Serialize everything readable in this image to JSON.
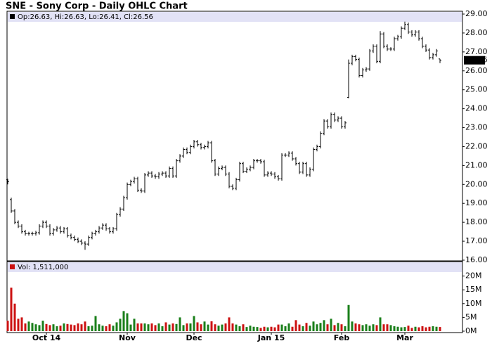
{
  "chart_data": [
    {
      "type": "ohlc",
      "title": "SNE - Sony Corp - Daily OHLC Chart",
      "legend": "Op:26.63, Hi:26.63, Lo:26.41, Cl:26.56",
      "legend_color": "#000000",
      "color": "#000000",
      "categories": [
        null,
        null,
        null,
        null,
        null,
        null,
        null,
        null,
        null,
        null,
        null,
        "Oct 14",
        null,
        null,
        null,
        null,
        null,
        null,
        null,
        null,
        null,
        null,
        null,
        null,
        null,
        null,
        null,
        null,
        null,
        null,
        null,
        null,
        null,
        null,
        "Nov",
        null,
        null,
        null,
        null,
        null,
        null,
        null,
        null,
        null,
        null,
        null,
        null,
        null,
        null,
        null,
        null,
        null,
        null,
        "Dec",
        null,
        null,
        null,
        null,
        null,
        null,
        null,
        null,
        null,
        null,
        null,
        null,
        null,
        null,
        null,
        null,
        null,
        null,
        null,
        null,
        null,
        "Jan 15",
        null,
        null,
        null,
        null,
        null,
        null,
        null,
        null,
        null,
        null,
        null,
        null,
        null,
        null,
        null,
        null,
        null,
        null,
        null,
        "Feb",
        null,
        null,
        null,
        null,
        null,
        null,
        null,
        null,
        null,
        null,
        null,
        null,
        null,
        null,
        null,
        null,
        null,
        "Mar",
        null,
        null,
        null,
        null,
        null,
        null,
        null,
        null,
        null,
        null
      ],
      "open": [
        20.25,
        19.2,
        18.6,
        18.0,
        17.8,
        17.5,
        17.4,
        17.4,
        17.4,
        17.45,
        17.8,
        18.0,
        17.8,
        17.4,
        17.6,
        17.7,
        17.5,
        17.65,
        17.3,
        17.2,
        17.1,
        17.0,
        16.9,
        16.85,
        17.2,
        17.4,
        17.5,
        17.7,
        17.85,
        17.65,
        17.5,
        17.65,
        18.4,
        18.7,
        19.3,
        20.0,
        20.15,
        20.3,
        19.7,
        19.65,
        20.5,
        20.6,
        20.45,
        20.4,
        20.55,
        20.6,
        20.45,
        20.85,
        20.45,
        21.25,
        21.5,
        21.85,
        21.7,
        22.0,
        22.25,
        22.1,
        21.95,
        22.0,
        22.2,
        21.25,
        20.55,
        20.85,
        20.9,
        20.55,
        19.9,
        19.8,
        20.25,
        21.1,
        20.7,
        20.8,
        20.9,
        21.25,
        21.25,
        21.2,
        20.5,
        20.6,
        20.55,
        20.4,
        20.3,
        21.55,
        21.55,
        21.65,
        21.35,
        21.1,
        20.65,
        21.1,
        20.5,
        20.8,
        21.85,
        22.0,
        22.7,
        23.35,
        23.05,
        23.7,
        23.4,
        23.5,
        23.05,
        24.6,
        26.4,
        26.75,
        26.6,
        25.75,
        26.05,
        26.1,
        27.05,
        27.3,
        26.5,
        27.95,
        27.3,
        27.15,
        27.15,
        27.7,
        27.8,
        28.25,
        28.45,
        28.05,
        27.9,
        28.05,
        27.7,
        27.3,
        27.1,
        26.7,
        26.85,
        26.63
      ],
      "high": [
        20.3,
        19.3,
        18.7,
        18.1,
        17.9,
        17.6,
        17.5,
        17.5,
        17.55,
        17.9,
        18.1,
        18.1,
        17.9,
        17.7,
        17.8,
        17.8,
        17.75,
        17.75,
        17.4,
        17.3,
        17.2,
        17.1,
        17.0,
        17.3,
        17.5,
        17.6,
        17.8,
        17.95,
        17.95,
        17.75,
        17.75,
        18.5,
        18.8,
        19.4,
        20.1,
        20.25,
        20.4,
        20.4,
        19.8,
        20.6,
        20.7,
        20.7,
        20.55,
        20.65,
        20.7,
        20.7,
        20.95,
        20.95,
        21.35,
        21.6,
        21.95,
        21.95,
        22.1,
        22.35,
        22.35,
        22.2,
        22.1,
        22.3,
        22.3,
        21.35,
        20.95,
        21.0,
        21.0,
        20.65,
        20.0,
        20.35,
        21.2,
        21.2,
        20.9,
        21.0,
        21.35,
        21.35,
        21.35,
        21.3,
        20.7,
        20.7,
        20.65,
        20.5,
        21.65,
        21.65,
        21.75,
        21.75,
        21.45,
        21.2,
        21.2,
        21.2,
        20.9,
        21.95,
        22.1,
        22.8,
        23.45,
        23.45,
        23.8,
        23.8,
        23.6,
        23.6,
        23.35,
        26.6,
        26.85,
        26.85,
        26.7,
        26.15,
        26.2,
        27.15,
        27.4,
        27.4,
        28.1,
        28.05,
        27.4,
        27.25,
        27.8,
        27.9,
        28.35,
        28.6,
        28.55,
        28.15,
        28.15,
        28.15,
        27.8,
        27.4,
        27.2,
        26.95,
        27.15,
        26.63
      ],
      "low": [
        20.0,
        18.5,
        17.9,
        17.7,
        17.4,
        17.3,
        17.3,
        17.3,
        17.3,
        17.35,
        17.7,
        17.7,
        17.3,
        17.3,
        17.5,
        17.4,
        17.4,
        17.2,
        17.1,
        17.0,
        16.9,
        16.8,
        16.55,
        16.75,
        17.1,
        17.3,
        17.4,
        17.6,
        17.55,
        17.4,
        17.4,
        17.55,
        18.3,
        18.6,
        19.2,
        19.9,
        20.05,
        19.6,
        19.55,
        19.55,
        20.4,
        20.35,
        20.3,
        20.3,
        20.45,
        20.35,
        20.35,
        20.35,
        20.35,
        21.15,
        21.4,
        21.6,
        21.6,
        21.9,
        22.0,
        21.85,
        21.85,
        21.9,
        21.15,
        20.45,
        20.45,
        20.75,
        20.45,
        19.8,
        19.7,
        19.7,
        20.15,
        20.6,
        20.6,
        20.7,
        20.8,
        21.15,
        21.1,
        20.4,
        20.4,
        20.45,
        20.3,
        20.2,
        20.2,
        21.45,
        21.45,
        21.25,
        21.0,
        20.55,
        20.55,
        20.4,
        20.4,
        20.7,
        21.75,
        21.9,
        22.6,
        22.95,
        22.95,
        23.3,
        23.3,
        22.95,
        22.95,
        24.55,
        26.3,
        26.5,
        25.65,
        25.65,
        25.95,
        26.0,
        26.95,
        26.4,
        26.4,
        27.2,
        27.05,
        27.05,
        27.05,
        27.6,
        27.7,
        28.15,
        27.95,
        27.8,
        27.8,
        27.6,
        27.2,
        27.0,
        26.6,
        26.6,
        26.75,
        26.41
      ],
      "close": [
        20.15,
        18.6,
        18.0,
        17.8,
        17.5,
        17.4,
        17.4,
        17.4,
        17.45,
        17.8,
        18.0,
        17.8,
        17.4,
        17.6,
        17.7,
        17.5,
        17.65,
        17.3,
        17.2,
        17.1,
        17.0,
        16.9,
        16.85,
        17.2,
        17.4,
        17.5,
        17.7,
        17.85,
        17.65,
        17.5,
        17.65,
        18.4,
        18.7,
        19.3,
        20.0,
        20.15,
        20.3,
        19.7,
        19.65,
        20.5,
        20.6,
        20.45,
        20.4,
        20.55,
        20.6,
        20.45,
        20.85,
        20.45,
        21.25,
        21.5,
        21.85,
        21.7,
        22.0,
        22.25,
        22.1,
        21.95,
        22.0,
        22.2,
        21.25,
        20.55,
        20.85,
        20.9,
        20.55,
        19.9,
        19.8,
        20.25,
        21.1,
        20.7,
        20.8,
        20.9,
        21.25,
        21.25,
        21.2,
        20.5,
        20.6,
        20.55,
        20.4,
        20.3,
        21.55,
        21.55,
        21.65,
        21.35,
        21.1,
        20.65,
        21.1,
        20.5,
        20.8,
        21.85,
        22.0,
        22.7,
        23.35,
        23.05,
        23.7,
        23.4,
        23.5,
        23.05,
        23.25,
        26.4,
        26.75,
        26.6,
        25.75,
        26.05,
        26.1,
        27.05,
        27.3,
        26.5,
        27.95,
        27.3,
        27.15,
        27.15,
        27.7,
        27.8,
        28.25,
        28.45,
        28.05,
        27.9,
        28.05,
        27.7,
        27.3,
        27.1,
        26.7,
        26.85,
        27.05,
        26.56
      ],
      "ylim": [
        16,
        29
      ],
      "yticks": [
        {
          "value": 16,
          "label": "16.00"
        },
        {
          "value": 17,
          "label": "17.00"
        },
        {
          "value": 18,
          "label": "18.00"
        },
        {
          "value": 19,
          "label": "19.00"
        },
        {
          "value": 20,
          "label": "20.00"
        },
        {
          "value": 21,
          "label": "21.00"
        },
        {
          "value": 22,
          "label": "22.00"
        },
        {
          "value": 23,
          "label": "23.00"
        },
        {
          "value": 24,
          "label": "24.00"
        },
        {
          "value": 25,
          "label": "25.00"
        },
        {
          "value": 26,
          "label": "26.00"
        },
        {
          "value": 27,
          "label": "27.00"
        },
        {
          "value": 28,
          "label": "28.00"
        },
        {
          "value": 29,
          "label": "29.00"
        }
      ]
    },
    {
      "type": "bar",
      "legend": "Vol: 1,511,000",
      "legend_color": "#cc1111",
      "up_color": "#1a7f1a",
      "down_color": "#cc1111",
      "values": [
        3800000,
        15800000,
        10000000,
        4500000,
        5000000,
        2800000,
        3500000,
        3000000,
        2500000,
        2200000,
        3800000,
        2600000,
        2200000,
        2500000,
        1800000,
        2000000,
        2800000,
        2600000,
        2400000,
        2200000,
        2800000,
        2500000,
        3500000,
        1800000,
        2000000,
        5500000,
        2500000,
        2000000,
        1800000,
        2500000,
        2000000,
        3200000,
        4500000,
        7300000,
        6500000,
        2400000,
        4500000,
        2800000,
        2800000,
        2800000,
        2500000,
        2800000,
        2200000,
        2800000,
        1800000,
        3200000,
        2400000,
        2800000,
        2600000,
        5000000,
        2200000,
        2800000,
        2800000,
        5500000,
        3200000,
        2500000,
        3500000,
        2400000,
        3600000,
        2500000,
        2000000,
        2400000,
        2800000,
        5000000,
        2800000,
        2400000,
        1800000,
        2500000,
        1500000,
        2000000,
        1600000,
        1500000,
        1200000,
        1600000,
        1400000,
        1600000,
        1400000,
        2400000,
        2400000,
        1800000,
        2800000,
        1600000,
        4000000,
        2400000,
        1800000,
        3000000,
        2000000,
        3500000,
        2500000,
        3000000,
        4000000,
        2500000,
        4500000,
        2200000,
        3000000,
        2500000,
        1800000,
        9500000,
        3500000,
        2800000,
        2500000,
        2200000,
        2500000,
        2000000,
        2500000,
        2200000,
        5000000,
        2500000,
        2500000,
        2200000,
        1800000,
        1600000,
        1400000,
        1500000,
        2000000,
        1200000,
        1600000,
        1400000,
        1800000,
        1400000,
        1600000,
        1800000,
        1600000,
        1511000
      ],
      "ylim": [
        0,
        25000000
      ],
      "yticks": [
        {
          "value": 0,
          "label": "0M"
        },
        {
          "value": 5000000,
          "label": "5M"
        },
        {
          "value": 10000000,
          "label": "10M"
        },
        {
          "value": 15000000,
          "label": "15M"
        },
        {
          "value": 20000000,
          "label": "20M"
        }
      ]
    }
  ]
}
